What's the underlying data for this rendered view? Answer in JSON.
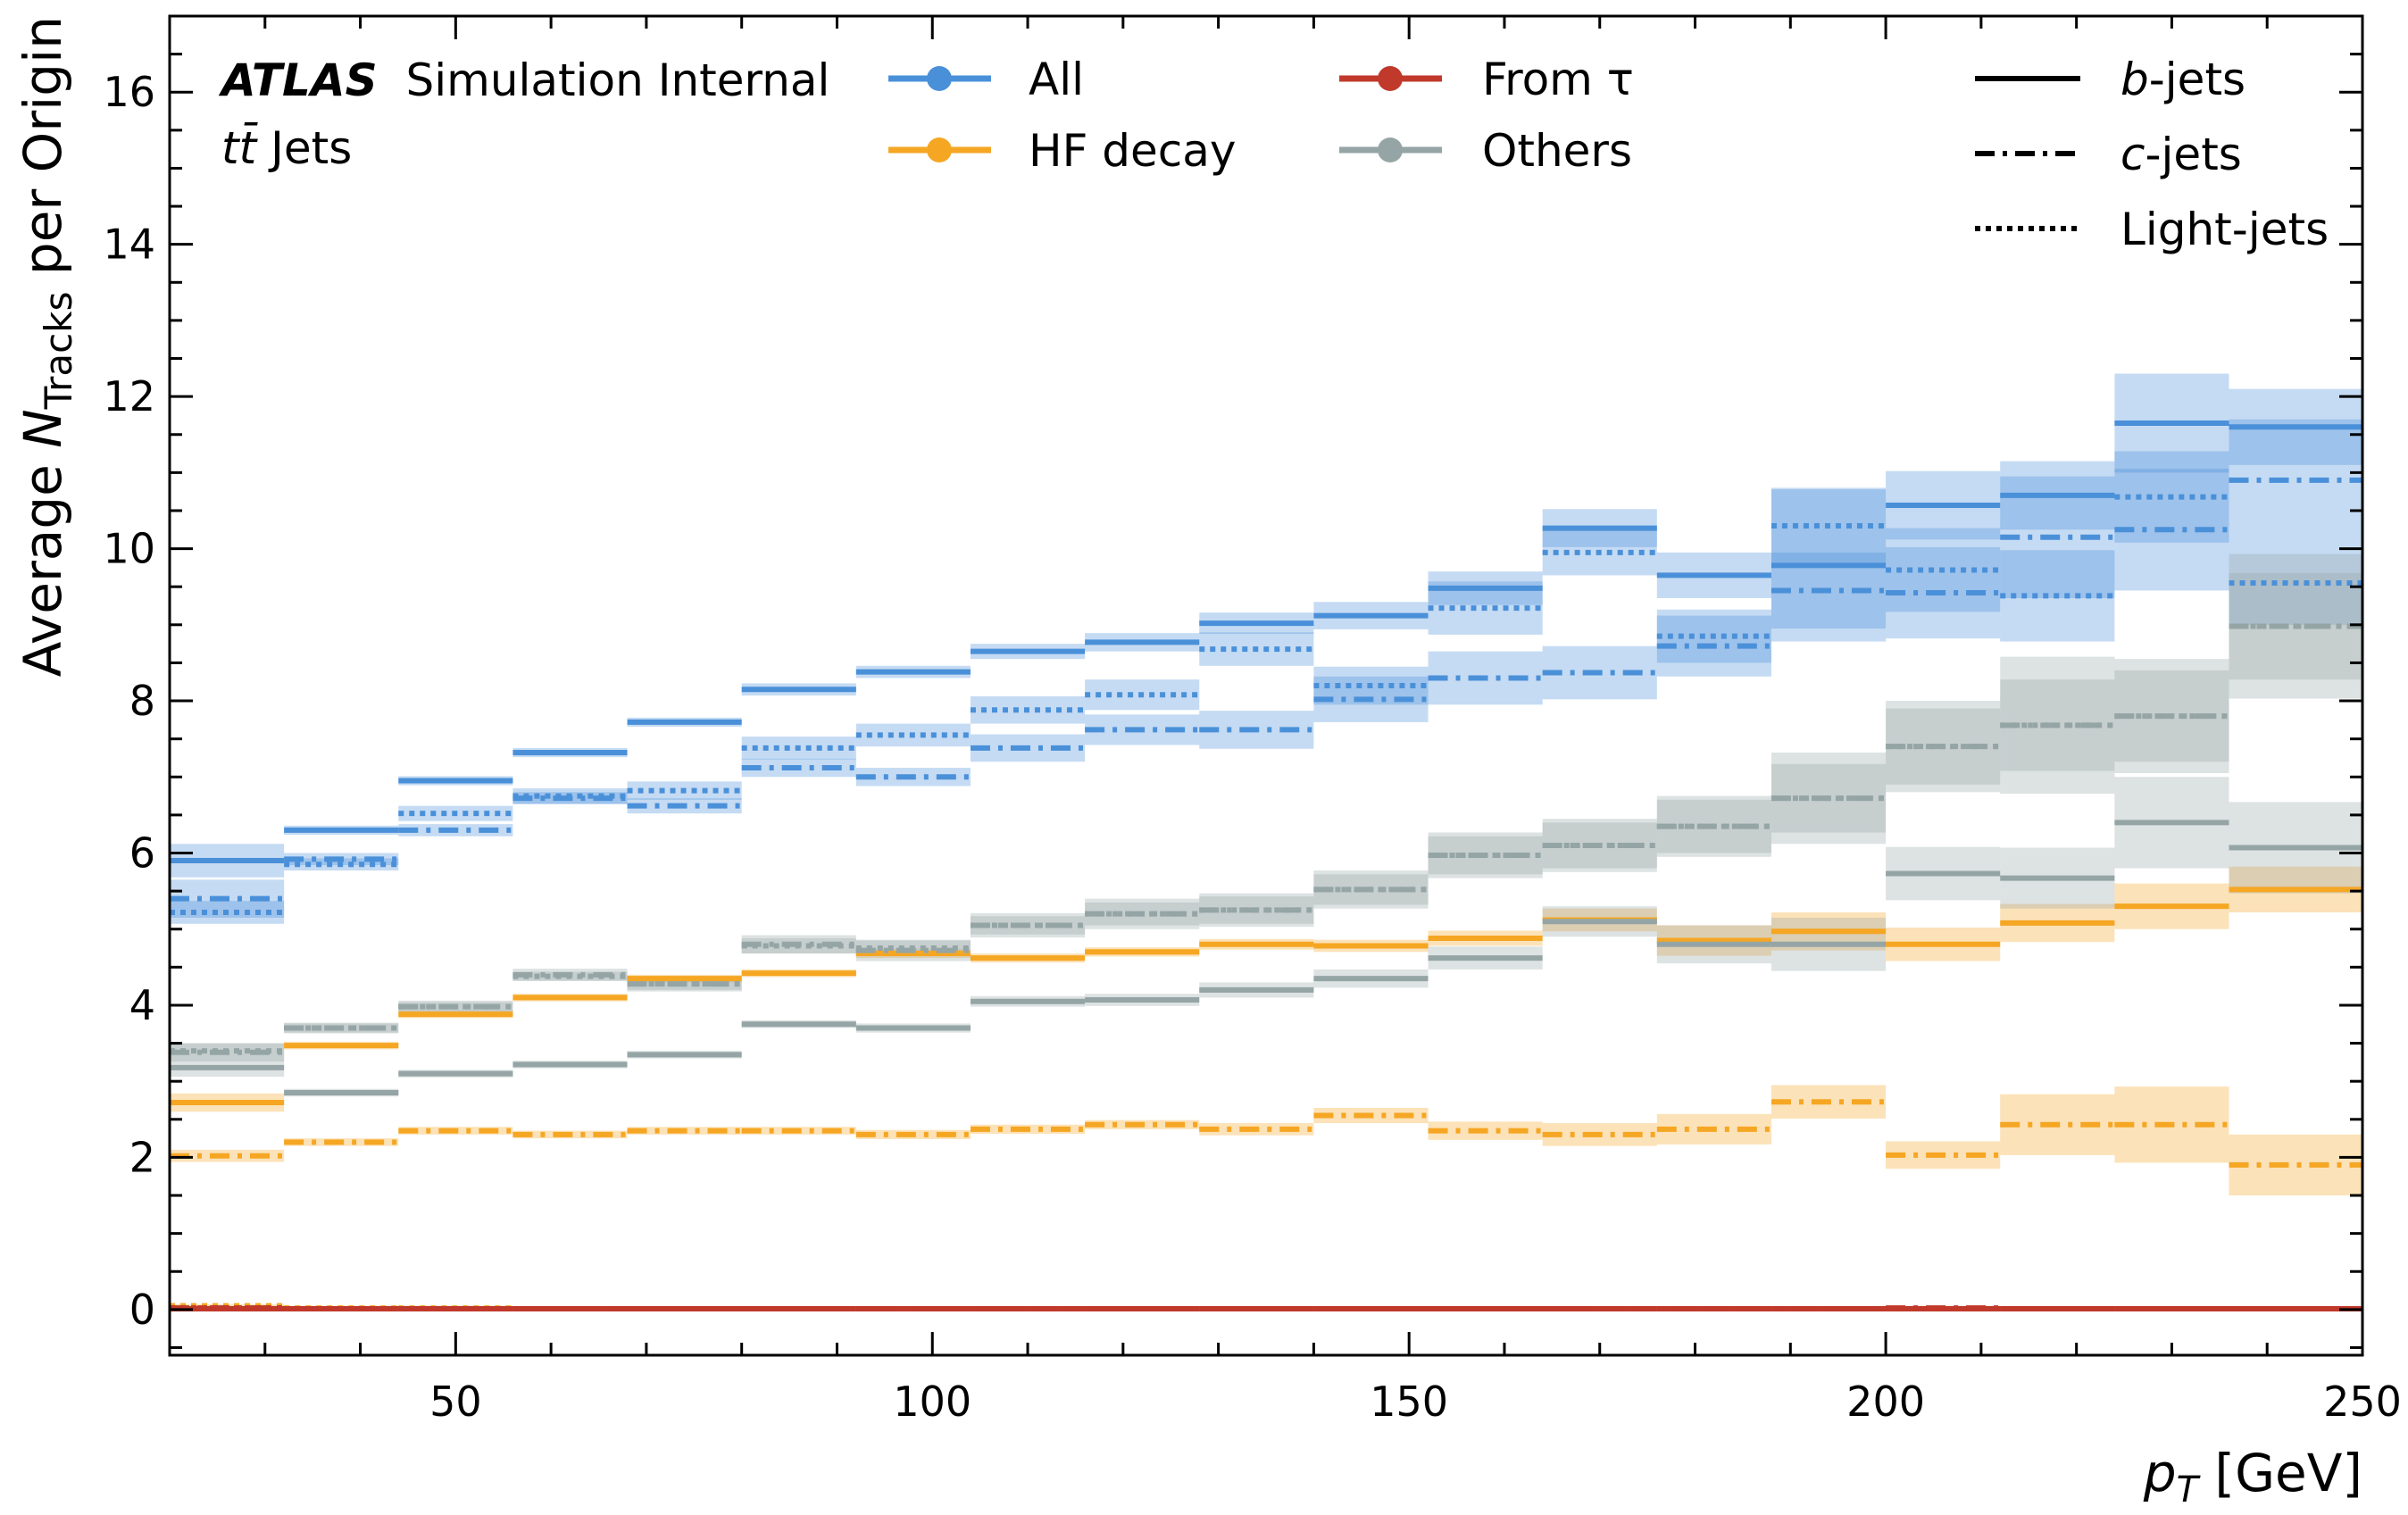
{
  "chart_data": {
    "type": "line",
    "style": "step histogram with shaded uncertainty bands",
    "title": "",
    "header": {
      "experiment": "ATLAS",
      "status": "Simulation Internal",
      "sample_tt": "tt̄",
      "sample_rest": " Jets"
    },
    "xlabel": {
      "var": "p",
      "sub": "T",
      "unit": " [GeV]"
    },
    "ylabel": {
      "pre": "Average ",
      "var": "N",
      "sub": "Tracks",
      "post": " per Origin"
    },
    "xlim": [
      20,
      250
    ],
    "ylim": [
      -0.6,
      17
    ],
    "x_ticks": [
      50,
      100,
      150,
      200,
      250
    ],
    "y_ticks": [
      0,
      2,
      4,
      6,
      8,
      10,
      12,
      14,
      16
    ],
    "grid": false,
    "bin_edges": [
      20,
      32,
      44,
      56,
      68,
      80,
      92,
      104,
      116,
      128,
      140,
      152,
      164,
      176,
      188,
      200,
      212,
      224,
      236,
      250
    ],
    "legend_origins": [
      {
        "key": "all",
        "label": "All"
      },
      {
        "key": "hf",
        "label": "HF decay"
      },
      {
        "key": "tau",
        "label": "From τ"
      },
      {
        "key": "others",
        "label": "Others"
      }
    ],
    "legend_flavours": [
      {
        "key": "b",
        "var": "b",
        "rest": "-jets",
        "dash": "solid"
      },
      {
        "key": "c",
        "var": "c",
        "rest": "-jets",
        "dash": "dashdot"
      },
      {
        "key": "light",
        "var": "",
        "rest": "Light-jets",
        "dash": "dotted"
      }
    ],
    "colors": {
      "all": "#4a90d9",
      "hf": "#f5a623",
      "tau": "#c0392b",
      "others": "#95a5a6"
    },
    "series": [
      {
        "origin": "all",
        "flavour": "b",
        "values": [
          5.9,
          6.3,
          6.95,
          7.32,
          7.72,
          8.15,
          8.38,
          8.65,
          8.77,
          9.02,
          9.12,
          9.48,
          10.27,
          9.65,
          9.78,
          10.57,
          10.7,
          11.65,
          11.6
        ],
        "err": [
          0.22,
          0.06,
          0.06,
          0.06,
          0.06,
          0.08,
          0.08,
          0.1,
          0.12,
          0.14,
          0.18,
          0.22,
          0.25,
          0.3,
          1.0,
          0.45,
          0.45,
          0.65,
          0.5
        ]
      },
      {
        "origin": "all",
        "flavour": "c",
        "values": [
          5.4,
          5.92,
          6.3,
          6.72,
          6.62,
          7.12,
          7.0,
          7.38,
          7.62,
          7.62,
          8.02,
          8.3,
          8.37,
          8.72,
          9.45,
          9.42,
          10.15,
          10.25,
          10.9
        ],
        "err": [
          0.25,
          0.08,
          0.08,
          0.08,
          0.1,
          0.12,
          0.12,
          0.18,
          0.2,
          0.25,
          0.3,
          0.35,
          0.35,
          0.4,
          0.5,
          0.6,
          0.8,
          0.8,
          0.8
        ]
      },
      {
        "origin": "all",
        "flavour": "light",
        "values": [
          5.22,
          5.85,
          6.52,
          6.75,
          6.82,
          7.38,
          7.55,
          7.88,
          8.08,
          8.68,
          8.2,
          9.22,
          9.95,
          8.85,
          10.3,
          9.72,
          9.38,
          10.68,
          9.55
        ],
        "err": [
          0.15,
          0.08,
          0.1,
          0.1,
          0.12,
          0.15,
          0.15,
          0.18,
          0.2,
          0.22,
          0.25,
          0.35,
          0.3,
          0.35,
          0.5,
          0.55,
          0.6,
          0.6,
          0.55
        ]
      },
      {
        "origin": "hf",
        "flavour": "b",
        "values": [
          2.72,
          3.47,
          3.88,
          4.1,
          4.35,
          4.42,
          4.68,
          4.62,
          4.7,
          4.8,
          4.78,
          4.88,
          5.12,
          4.85,
          4.97,
          4.8,
          5.08,
          5.3,
          5.52
        ],
        "err": [
          0.12,
          0.05,
          0.05,
          0.05,
          0.05,
          0.05,
          0.06,
          0.06,
          0.06,
          0.07,
          0.08,
          0.1,
          0.15,
          0.2,
          0.25,
          0.22,
          0.25,
          0.3,
          0.3
        ]
      },
      {
        "origin": "hf",
        "flavour": "c",
        "values": [
          2.02,
          2.2,
          2.35,
          2.3,
          2.35,
          2.35,
          2.3,
          2.37,
          2.43,
          2.37,
          2.55,
          2.35,
          2.3,
          2.37,
          2.73,
          2.03,
          2.43,
          2.43,
          1.9
        ],
        "err": [
          0.08,
          0.05,
          0.05,
          0.05,
          0.05,
          0.05,
          0.06,
          0.06,
          0.06,
          0.08,
          0.1,
          0.12,
          0.15,
          0.2,
          0.22,
          0.18,
          0.4,
          0.5,
          0.4
        ]
      },
      {
        "origin": "hf",
        "flavour": "light",
        "values": [
          0.05,
          0.02,
          0.02,
          0.01,
          0.01,
          0.01,
          0.01,
          0.01,
          0.01,
          0.01,
          0.01,
          0.01,
          0.01,
          0.01,
          0.01,
          0.01,
          0.01,
          0.01,
          0.01
        ],
        "err": [
          0.02,
          0.01,
          0.01,
          0.01,
          0.01,
          0.01,
          0.01,
          0.01,
          0.01,
          0.01,
          0.01,
          0.01,
          0.01,
          0.01,
          0.01,
          0.01,
          0.01,
          0.01,
          0.01
        ]
      },
      {
        "origin": "tau",
        "flavour": "b",
        "values": [
          0.01,
          0.01,
          0.01,
          0.01,
          0.01,
          0.01,
          0.01,
          0.01,
          0.01,
          0.01,
          0.01,
          0.01,
          0.01,
          0.01,
          0.01,
          0.01,
          0.01,
          0.01,
          0.01
        ],
        "err": [
          0.01,
          0.01,
          0.01,
          0.01,
          0.01,
          0.01,
          0.01,
          0.01,
          0.01,
          0.01,
          0.01,
          0.01,
          0.01,
          0.01,
          0.01,
          0.01,
          0.01,
          0.01,
          0.01
        ]
      },
      {
        "origin": "tau",
        "flavour": "c",
        "values": [
          0.02,
          0.01,
          0.01,
          0.01,
          0.01,
          0.01,
          0.01,
          0.01,
          0.01,
          0.01,
          0.01,
          0.01,
          0.01,
          0.01,
          0.01,
          0.02,
          0.01,
          0.01,
          0.01
        ],
        "err": [
          0.01,
          0.01,
          0.01,
          0.01,
          0.01,
          0.01,
          0.01,
          0.01,
          0.01,
          0.01,
          0.01,
          0.01,
          0.01,
          0.01,
          0.01,
          0.02,
          0.01,
          0.01,
          0.01
        ]
      },
      {
        "origin": "tau",
        "flavour": "light",
        "values": [
          0.02,
          0.01,
          0.01,
          0.01,
          0.01,
          0.01,
          0.01,
          0.01,
          0.01,
          0.01,
          0.01,
          0.01,
          0.01,
          0.01,
          0.01,
          0.01,
          0.01,
          0.01,
          0.01
        ],
        "err": [
          0.01,
          0.01,
          0.01,
          0.01,
          0.01,
          0.01,
          0.01,
          0.01,
          0.01,
          0.01,
          0.01,
          0.01,
          0.01,
          0.01,
          0.01,
          0.01,
          0.01,
          0.01,
          0.01
        ]
      },
      {
        "origin": "others",
        "flavour": "b",
        "values": [
          3.18,
          2.85,
          3.1,
          3.22,
          3.35,
          3.75,
          3.7,
          4.05,
          4.07,
          4.2,
          4.35,
          4.62,
          5.1,
          4.8,
          4.8,
          5.73,
          5.67,
          6.4,
          6.07
        ],
        "err": [
          0.12,
          0.05,
          0.05,
          0.05,
          0.05,
          0.05,
          0.06,
          0.07,
          0.08,
          0.1,
          0.12,
          0.15,
          0.2,
          0.25,
          0.35,
          0.35,
          0.4,
          0.6,
          0.6
        ]
      },
      {
        "origin": "others",
        "flavour": "c",
        "values": [
          3.38,
          3.7,
          3.98,
          4.4,
          4.28,
          4.8,
          4.72,
          5.05,
          5.2,
          5.25,
          5.52,
          5.97,
          6.1,
          6.35,
          6.72,
          7.4,
          7.68,
          7.8,
          8.98
        ],
        "err": [
          0.12,
          0.07,
          0.08,
          0.08,
          0.1,
          0.12,
          0.14,
          0.16,
          0.2,
          0.22,
          0.25,
          0.3,
          0.35,
          0.4,
          0.6,
          0.6,
          0.9,
          0.75,
          0.95
        ]
      },
      {
        "origin": "others",
        "flavour": "light",
        "values": [
          3.4,
          3.7,
          3.98,
          4.38,
          4.28,
          4.78,
          4.75,
          5.05,
          5.2,
          5.25,
          5.52,
          5.97,
          6.1,
          6.35,
          6.72,
          7.4,
          7.68,
          7.8,
          8.98
        ],
        "err": [
          0.1,
          0.06,
          0.06,
          0.06,
          0.08,
          0.1,
          0.1,
          0.12,
          0.15,
          0.18,
          0.2,
          0.25,
          0.3,
          0.35,
          0.45,
          0.5,
          0.6,
          0.6,
          0.7
        ]
      }
    ]
  }
}
